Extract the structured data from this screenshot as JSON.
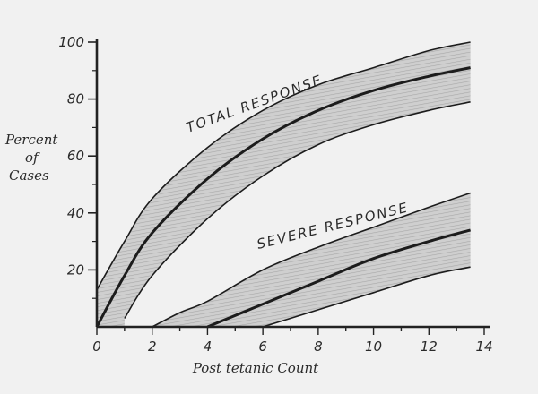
{
  "chart_data": {
    "type": "area",
    "title": "",
    "xlabel": "Post tetanic Count",
    "ylabel_lines": [
      "Percent",
      "of",
      "Cases"
    ],
    "xlim": [
      0,
      14
    ],
    "ylim": [
      0,
      100
    ],
    "xticks": [
      0,
      2,
      4,
      6,
      8,
      10,
      12,
      14
    ],
    "yticks": [
      20,
      40,
      60,
      80,
      100
    ],
    "grid": false,
    "series": [
      {
        "name": "TOTAL RESPONSE",
        "x": [
          0,
          1,
          2,
          4,
          6,
          8,
          10,
          12,
          13.5
        ],
        "upper": [
          13,
          30,
          45,
          63,
          76,
          85,
          91,
          97,
          100
        ],
        "center": [
          0,
          18,
          33,
          52,
          66,
          76,
          83,
          88,
          91
        ],
        "lower": [
          null,
          3,
          18,
          38,
          53,
          64,
          71,
          76,
          79
        ]
      },
      {
        "name": "SEVERE RESPONSE",
        "x": [
          2,
          3,
          4,
          6,
          8,
          10,
          12,
          13.5
        ],
        "upper": [
          0,
          5,
          9,
          20,
          28,
          35,
          42,
          47
        ],
        "center": [
          null,
          null,
          0,
          8,
          16,
          24,
          30,
          34
        ],
        "lower": [
          null,
          null,
          null,
          0,
          6,
          12,
          18,
          21
        ]
      }
    ],
    "colors": {
      "band": "#bdbdbd",
      "line": "#1c1c1c",
      "axis": "#222222"
    }
  }
}
